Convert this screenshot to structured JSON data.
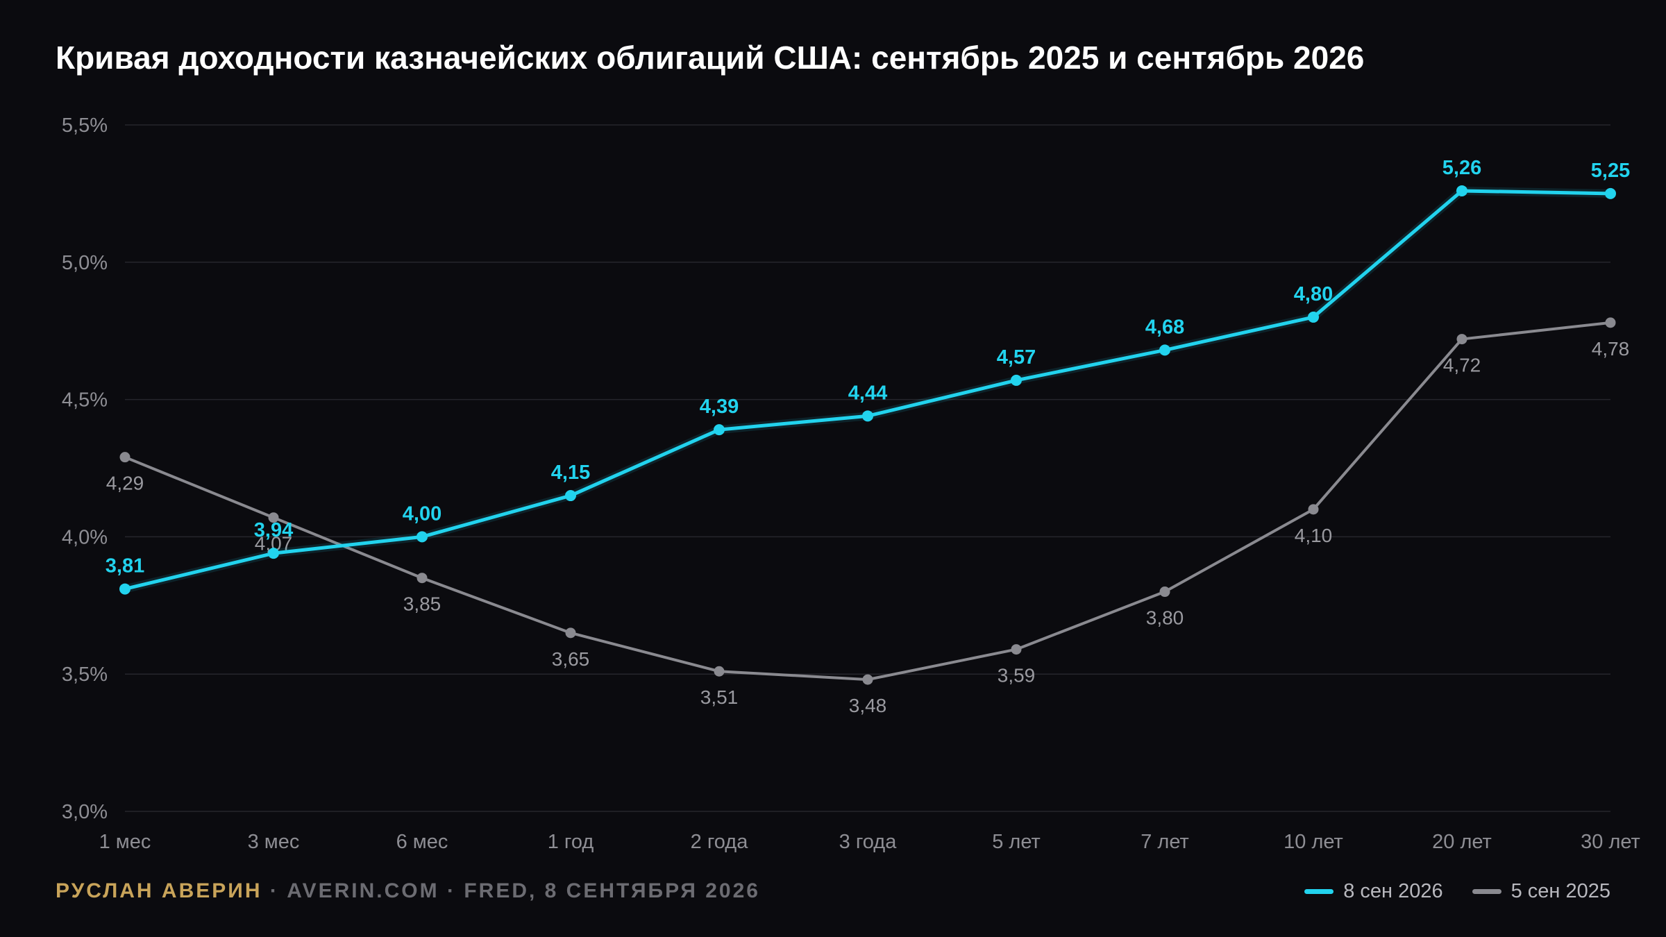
{
  "title": "Кривая доходности казначейских облигаций США: сентябрь 2025 и сентябрь 2026",
  "footer": {
    "author": "РУСЛАН АВЕРИН",
    "sep1": "·",
    "site": "AVERIN.COM",
    "sep2": "·",
    "source": "FRED, 8 СЕНТЯБРЯ 2026"
  },
  "colors": {
    "background": "#0b0b0f",
    "series_2026": "#22d3ee",
    "series_2025": "#8a8a90",
    "author": "#c9a45a"
  },
  "chart_data": {
    "type": "line",
    "categories": [
      "1 мес",
      "3 мес",
      "6 мес",
      "1 год",
      "2 года",
      "3 года",
      "5 лет",
      "7 лет",
      "10 лет",
      "20 лет",
      "30 лет"
    ],
    "y_tick_labels": [
      "3,0%",
      "3,5%",
      "4,0%",
      "4,5%",
      "5,0%",
      "5,5%"
    ],
    "y_ticks": [
      3.0,
      3.5,
      4.0,
      4.5,
      5.0,
      5.5
    ],
    "ylim": [
      3.0,
      5.5
    ],
    "grid": true,
    "legend_position": "bottom-right",
    "series": [
      {
        "name": "8 сен 2026",
        "color": "#22d3ee",
        "values": [
          3.81,
          3.94,
          4.0,
          4.15,
          4.39,
          4.44,
          4.57,
          4.68,
          4.8,
          5.26,
          5.25
        ],
        "labels": [
          "3,81",
          "3,94",
          "4,00",
          "4,15",
          "4,39",
          "4,44",
          "4,57",
          "4,68",
          "4,80",
          "5,26",
          "5,25"
        ]
      },
      {
        "name": "5 сен 2025",
        "color": "#8a8a90",
        "values": [
          4.29,
          4.07,
          3.85,
          3.65,
          3.51,
          3.48,
          3.59,
          3.8,
          4.1,
          4.72,
          4.78
        ],
        "labels": [
          "4,29",
          "4,07",
          "3,85",
          "3,65",
          "3,51",
          "3,48",
          "3,59",
          "3,80",
          "4,10",
          "4,72",
          "4,78"
        ]
      }
    ]
  }
}
